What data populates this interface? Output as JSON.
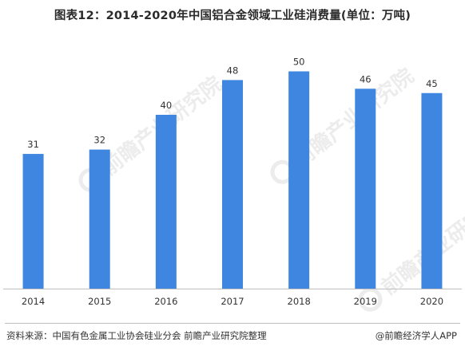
{
  "title": "图表12：2014-2020年中国铝合金领域工业硅消费量(单位：万吨)",
  "watermark": "前瞻产业研究院",
  "footer": {
    "source": "资料来源：中国有色金属工业协会硅业分会 前瞻产业研究院整理",
    "credit": "@前瞻经济学人APP"
  },
  "colors": {
    "bar": "#3f86e0",
    "axis": "#bfbfbf",
    "label": "#333333"
  },
  "chart_data": {
    "type": "bar",
    "title": "图表12：2014-2020年中国铝合金领域工业硅消费量(单位：万吨)",
    "categories": [
      "2014",
      "2015",
      "2016",
      "2017",
      "2018",
      "2019",
      "2020"
    ],
    "values": [
      31,
      32,
      40,
      48,
      50,
      46,
      45
    ],
    "data_labels": [
      "31",
      "32",
      "40",
      "48",
      "50",
      "46",
      "45"
    ],
    "xlabel": "",
    "ylabel": "",
    "ylim": [
      0,
      60
    ],
    "grid": false,
    "legend": "none"
  }
}
